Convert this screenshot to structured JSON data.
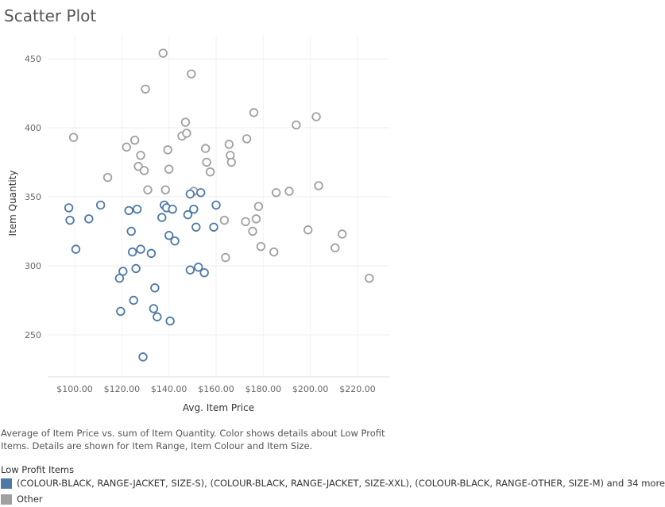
{
  "title": "Scatter Plot",
  "caption": "Average of Item Price vs. sum of Item Quantity.  Color shows details about Low Profit Items.  Details are shown for Item Range, Item Colour and Item Size.",
  "legend": {
    "title": "Low Profit Items",
    "items": [
      {
        "label": "(COLOUR-BLACK, RANGE-JACKET, SIZE-S), (COLOUR-BLACK, RANGE-JACKET, SIZE-XXL), (COLOUR-BLACK, RANGE-OTHER, SIZE-M) and 34 more",
        "color": "#4e79a7"
      },
      {
        "label": "Other",
        "color": "#a0a0a0"
      }
    ]
  },
  "chart_data": {
    "type": "scatter",
    "title": "Scatter Plot",
    "xlabel": "Avg. Item Price",
    "ylabel": "Item Quantity",
    "xlim": [
      90,
      225
    ],
    "ylim": [
      220,
      460
    ],
    "x_ticks": [
      "$100.00",
      "$120.00",
      "$140.00",
      "$160.00",
      "$180.00",
      "$200.00",
      "$220.00"
    ],
    "y_ticks": [
      "250",
      "300",
      "350",
      "400",
      "450"
    ],
    "grid": true,
    "series": [
      {
        "name": "(COLOUR-BLACK, RANGE-JACKET, SIZE-S), (COLOUR-BLACK, RANGE-JACKET, SIZE-XXL), (COLOUR-BLACK, RANGE-OTHER, SIZE-M) and 34 more",
        "color": "#4e79a7",
        "points": [
          [
            97.5,
            342
          ],
          [
            98,
            333
          ],
          [
            100.5,
            312
          ],
          [
            106,
            334
          ],
          [
            111,
            344
          ],
          [
            119,
            291
          ],
          [
            119.5,
            267
          ],
          [
            120.5,
            296
          ],
          [
            123,
            340
          ],
          [
            124,
            325
          ],
          [
            124.5,
            310
          ],
          [
            125,
            275
          ],
          [
            126,
            298
          ],
          [
            126.5,
            341
          ],
          [
            128,
            312
          ],
          [
            129,
            234
          ],
          [
            132.5,
            309
          ],
          [
            133.5,
            269
          ],
          [
            134,
            284
          ],
          [
            135,
            263
          ],
          [
            137,
            335
          ],
          [
            138,
            344
          ],
          [
            139,
            342
          ],
          [
            140,
            322
          ],
          [
            140.5,
            260
          ],
          [
            141.5,
            341
          ],
          [
            142.5,
            318
          ],
          [
            148,
            337
          ],
          [
            149,
            352
          ],
          [
            149,
            297
          ],
          [
            150.5,
            341
          ],
          [
            151.5,
            328
          ],
          [
            152.5,
            299
          ],
          [
            153.5,
            353
          ],
          [
            155,
            295
          ],
          [
            159,
            328
          ],
          [
            160,
            344
          ]
        ]
      },
      {
        "name": "Other",
        "color": "#a0a0a0",
        "points": [
          [
            99.5,
            393
          ],
          [
            114,
            364
          ],
          [
            122,
            386
          ],
          [
            125.5,
            391
          ],
          [
            127,
            372
          ],
          [
            128,
            380
          ],
          [
            129.5,
            369
          ],
          [
            130,
            428
          ],
          [
            131,
            355
          ],
          [
            137.5,
            454
          ],
          [
            138.5,
            355
          ],
          [
            139.5,
            384
          ],
          [
            140,
            370
          ],
          [
            145.5,
            394
          ],
          [
            147,
            404
          ],
          [
            147.5,
            396
          ],
          [
            149.5,
            439
          ],
          [
            150.5,
            354
          ],
          [
            155.5,
            385
          ],
          [
            156,
            375
          ],
          [
            157.5,
            368
          ],
          [
            163.5,
            333
          ],
          [
            164,
            306
          ],
          [
            165.5,
            388
          ],
          [
            166,
            380
          ],
          [
            166.5,
            375
          ],
          [
            172.5,
            332
          ],
          [
            173,
            392
          ],
          [
            175.5,
            325
          ],
          [
            176,
            411
          ],
          [
            177,
            334
          ],
          [
            178,
            343
          ],
          [
            179,
            314
          ],
          [
            184.5,
            310
          ],
          [
            185.5,
            353
          ],
          [
            191,
            354
          ],
          [
            194,
            402
          ],
          [
            199,
            326
          ],
          [
            202.5,
            408
          ],
          [
            203.5,
            358
          ],
          [
            210.5,
            313
          ],
          [
            213.5,
            323
          ],
          [
            225,
            291
          ]
        ]
      }
    ]
  }
}
